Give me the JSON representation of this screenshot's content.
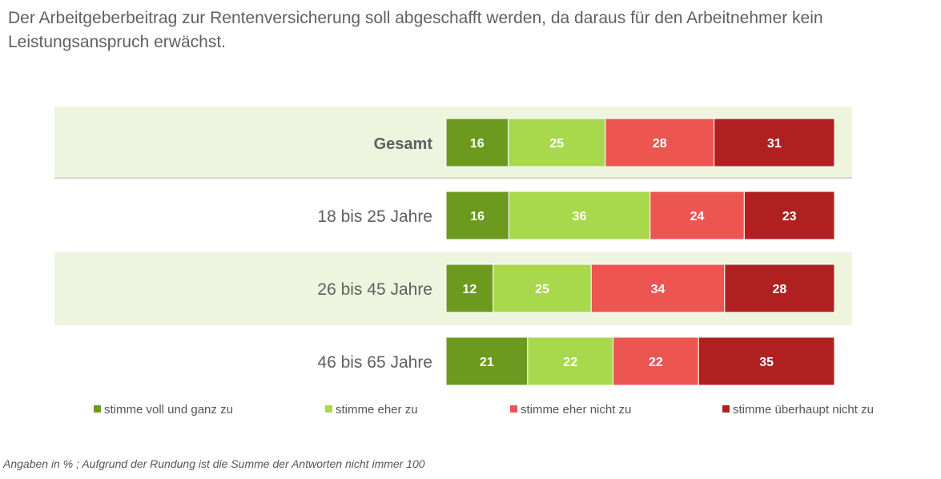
{
  "title": "Der Arbeitgeberbeitrag zur Rentenversicherung soll abgeschafft werden, da daraus für den Arbeitnehmer kein Leistungsanspruch erwächst.",
  "footnote": "Angaben in % ; Aufgrund der Rundung ist die Summe der Antworten nicht immer 100",
  "colors": {
    "band": "#eef5df",
    "divider": "#bcbcbc",
    "series": [
      "#6b9a1f",
      "#a8d84c",
      "#ec5550",
      "#b02020"
    ]
  },
  "chart_data": {
    "type": "bar",
    "stacked": true,
    "orientation": "horizontal",
    "categories": [
      "Gesamt",
      "18 bis 25 Jahre",
      "26 bis 45 Jahre",
      "46 bis 65 Jahre"
    ],
    "series": [
      {
        "name": "stimme voll und ganz zu",
        "values": [
          16,
          16,
          12,
          21
        ]
      },
      {
        "name": "stimme eher zu",
        "values": [
          25,
          36,
          25,
          22
        ]
      },
      {
        "name": "stimme eher nicht zu",
        "values": [
          28,
          24,
          34,
          22
        ]
      },
      {
        "name": "stimme überhaupt nicht zu",
        "values": [
          31,
          23,
          28,
          35
        ]
      }
    ],
    "legend_position": "bottom",
    "data_labels": true,
    "bold_categories": [
      "Gesamt"
    ]
  }
}
